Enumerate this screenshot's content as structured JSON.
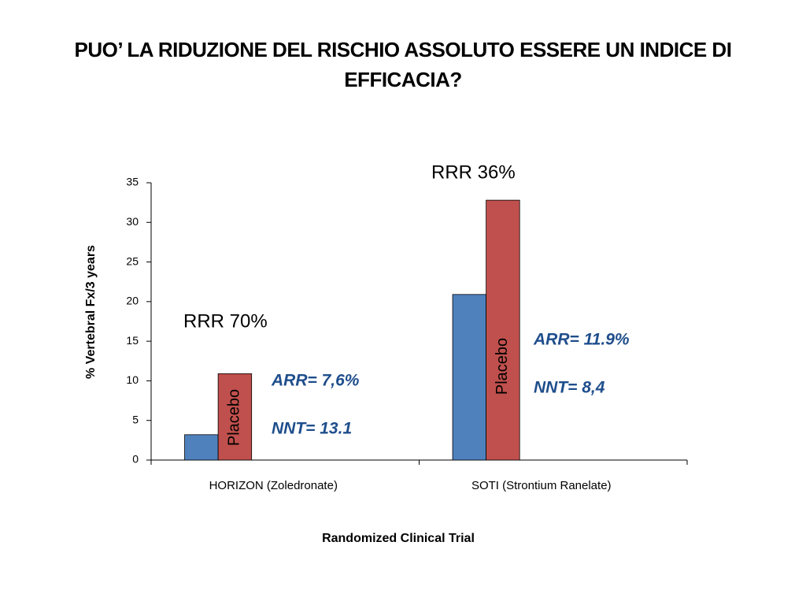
{
  "slide_title": "PUO’ LA RIDUZIONE DEL RISCHIO ASSOLUTO ESSERE UN INDICE DI EFFICACIA?",
  "chart_data": {
    "type": "bar",
    "x_label": "Randomized Clinical Trial",
    "y_label": "% Vertebral Fx/3 years",
    "categories": [
      "HORIZON (Zoledronate)",
      "SOTI (Strontium Ranelate)"
    ],
    "series": [
      {
        "color": "#4f81bd",
        "values": [
          3.2,
          20.9
        ]
      },
      {
        "name": "Placebo",
        "color": "#c0504d",
        "values": [
          10.9,
          32.8
        ]
      }
    ],
    "ylim": [
      0,
      35
    ],
    "yticks": [
      0,
      5,
      10,
      15,
      20,
      25,
      30,
      35
    ],
    "annotations": [
      "RRR 70%",
      "ARR= 7,6%",
      "NNT= 13.1",
      "RRR 36%",
      "ARR= 11.9%",
      "NNT= 8,4"
    ]
  }
}
